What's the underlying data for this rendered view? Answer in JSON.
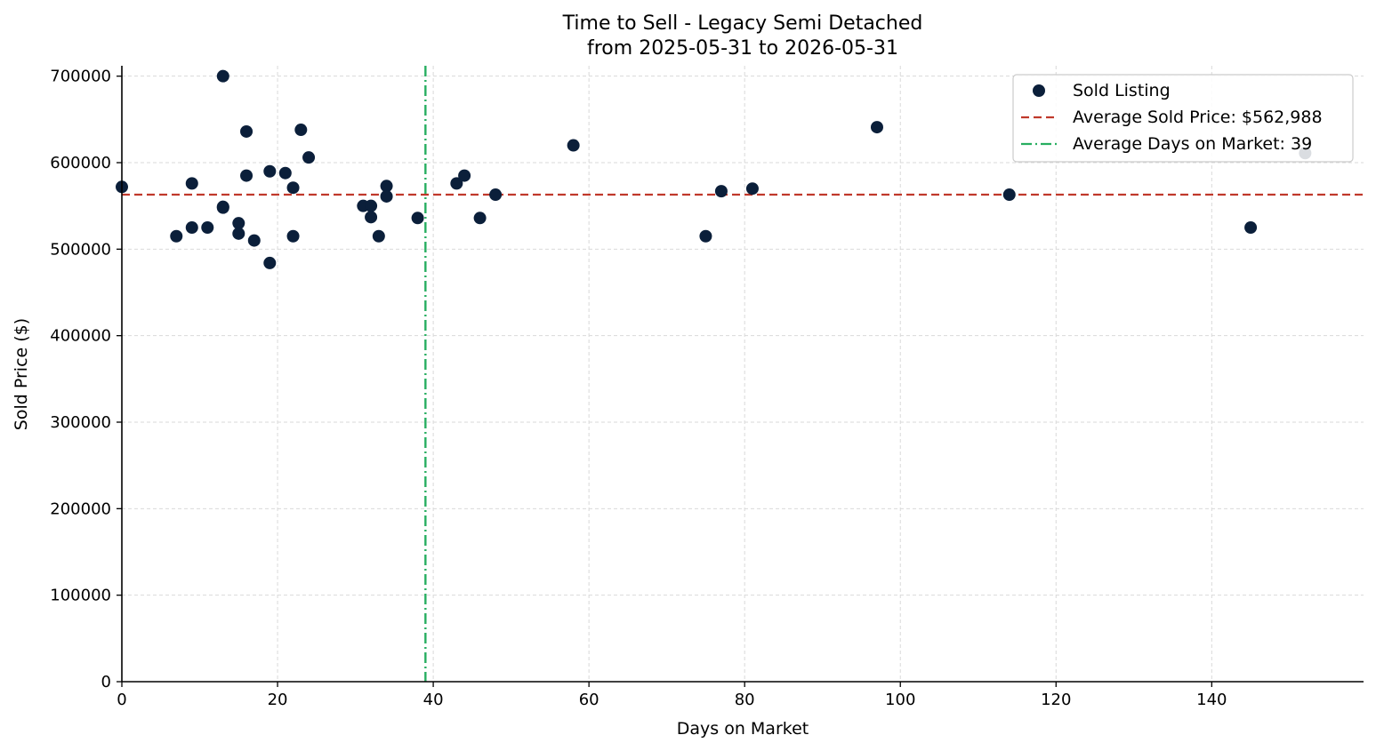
{
  "chart_data": {
    "type": "scatter",
    "title": "Time to Sell - Legacy Semi Detached",
    "subtitle": "from 2025-05-31 to 2026-05-31",
    "xlabel": "Days on Market",
    "ylabel": "Sold Price ($)",
    "xlim": [
      0,
      159.5
    ],
    "ylim": [
      0,
      712000
    ],
    "xticks": [
      0,
      20,
      40,
      60,
      80,
      100,
      120,
      140
    ],
    "yticks": [
      0,
      100000,
      200000,
      300000,
      400000,
      500000,
      600000,
      700000
    ],
    "grid": true,
    "legend_position": "top-right",
    "colors": {
      "points": "#0b1f3a",
      "avg_price_line": "#c0392b",
      "avg_days_line": "#27ae60"
    },
    "series": [
      {
        "name": "Sold Listing",
        "points": [
          {
            "x": 0,
            "y": 572000
          },
          {
            "x": 7,
            "y": 515000
          },
          {
            "x": 9,
            "y": 576000
          },
          {
            "x": 9,
            "y": 525000
          },
          {
            "x": 11,
            "y": 525000
          },
          {
            "x": 13,
            "y": 700000
          },
          {
            "x": 13,
            "y": 549000
          },
          {
            "x": 13,
            "y": 548000
          },
          {
            "x": 15,
            "y": 530000
          },
          {
            "x": 15,
            "y": 518000
          },
          {
            "x": 16,
            "y": 636000
          },
          {
            "x": 16,
            "y": 585000
          },
          {
            "x": 17,
            "y": 510000
          },
          {
            "x": 19,
            "y": 590000
          },
          {
            "x": 19,
            "y": 484000
          },
          {
            "x": 21,
            "y": 588000
          },
          {
            "x": 22,
            "y": 571000
          },
          {
            "x": 22,
            "y": 515000
          },
          {
            "x": 23,
            "y": 638000
          },
          {
            "x": 24,
            "y": 606000
          },
          {
            "x": 31,
            "y": 550000
          },
          {
            "x": 32,
            "y": 550000
          },
          {
            "x": 32,
            "y": 537000
          },
          {
            "x": 33,
            "y": 515000
          },
          {
            "x": 34,
            "y": 573000
          },
          {
            "x": 34,
            "y": 561000
          },
          {
            "x": 38,
            "y": 536000
          },
          {
            "x": 43,
            "y": 576000
          },
          {
            "x": 44,
            "y": 585000
          },
          {
            "x": 46,
            "y": 536000
          },
          {
            "x": 48,
            "y": 563000
          },
          {
            "x": 58,
            "y": 620000
          },
          {
            "x": 75,
            "y": 515000
          },
          {
            "x": 77,
            "y": 567000
          },
          {
            "x": 81,
            "y": 570000
          },
          {
            "x": 97,
            "y": 641000
          },
          {
            "x": 114,
            "y": 563000
          },
          {
            "x": 145,
            "y": 525000
          },
          {
            "x": 152,
            "y": 611000
          }
        ]
      }
    ],
    "reference_lines": [
      {
        "orientation": "horizontal",
        "value": 562988,
        "style": "dashed",
        "label": "Average Sold Price: $562,988"
      },
      {
        "orientation": "vertical",
        "value": 39,
        "style": "dash-dot",
        "label": "Average Days on Market: 39"
      }
    ]
  }
}
